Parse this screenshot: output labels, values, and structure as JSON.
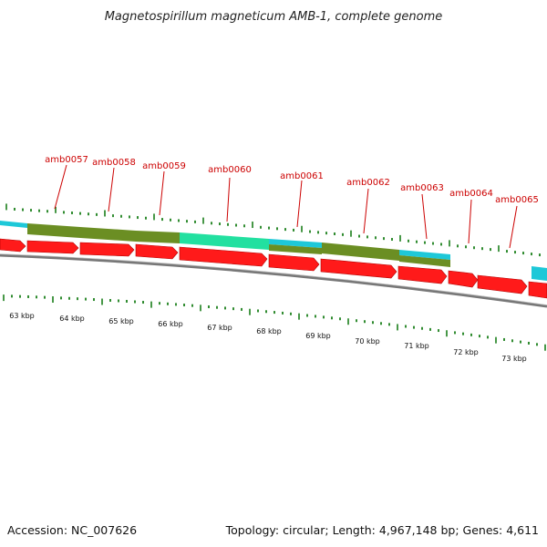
{
  "title": "Magnetospirillum magneticum AMB-1, complete genome",
  "footer": {
    "accession": "Accession: NC_007626",
    "summary": "Topology: circular; Length: 4,967,148 bp; Genes: 4,611"
  },
  "colors": {
    "cds_forward": "#ff1a1a",
    "gene_olive": "#6b8e23",
    "gene_cyan": "#1ec8d8",
    "gene_teal": "#22e0a0",
    "label_red": "#cc0000",
    "tick_green": "#1a7f1a",
    "backbone": "#777777"
  },
  "scale_labels": [
    "63 kbp",
    "64 kbp",
    "65 kbp",
    "66 kbp",
    "67 kbp",
    "68 kbp",
    "69 kbp",
    "70 kbp",
    "71 kbp",
    "72 kbp",
    "73 kbp"
  ],
  "genes": [
    {
      "label": "amb0057"
    },
    {
      "label": "amb0058"
    },
    {
      "label": "amb0059"
    },
    {
      "label": "amb0060"
    },
    {
      "label": "amb0061"
    },
    {
      "label": "amb0062"
    },
    {
      "label": "amb0063"
    },
    {
      "label": "amb0064"
    },
    {
      "label": "amb0065"
    }
  ]
}
